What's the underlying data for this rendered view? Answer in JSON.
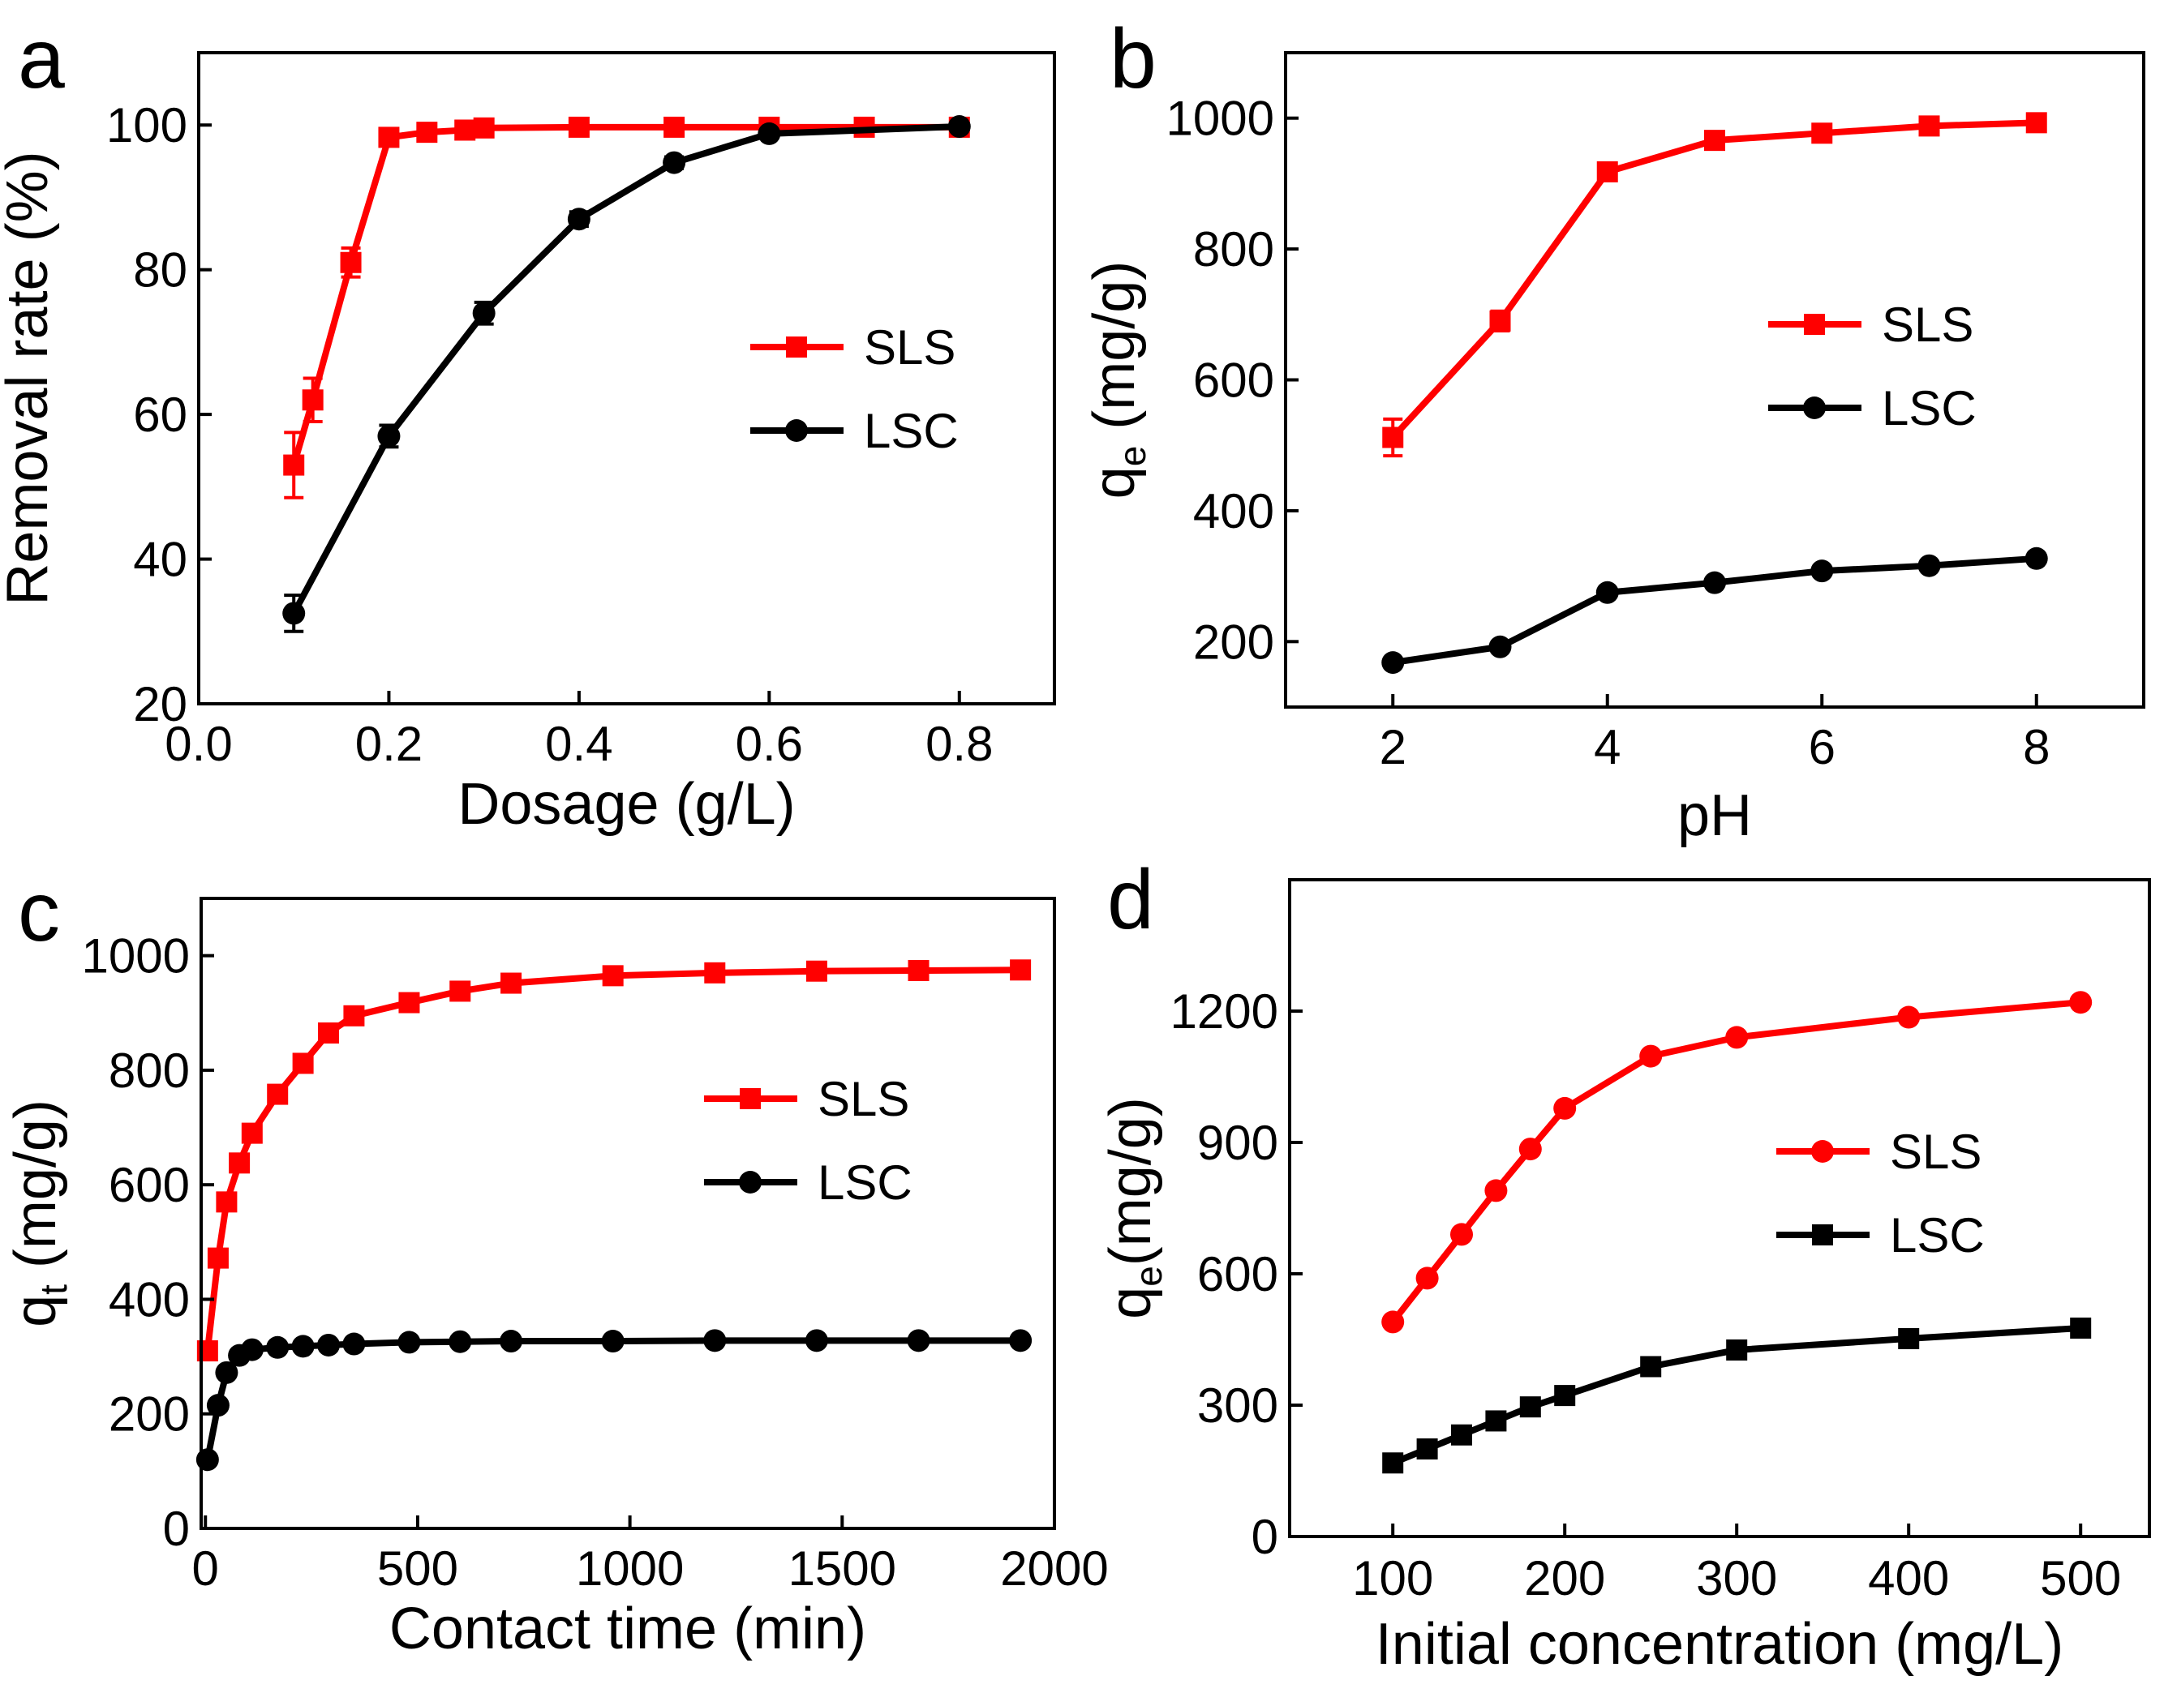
{
  "chart_data": [
    {
      "panel": "a",
      "type": "line",
      "xlabel": "Dosage (g/L)",
      "ylabel": "Removal rate (%)",
      "xlim": [
        0.0,
        0.9
      ],
      "ylim": [
        20,
        110
      ],
      "xticks": [
        0.0,
        0.2,
        0.4,
        0.6,
        0.8
      ],
      "xtick_labels": [
        "0.0",
        "0.2",
        "0.4",
        "0.6",
        "0.8"
      ],
      "yticks": [
        20,
        40,
        60,
        80,
        100
      ],
      "ytick_labels": [
        "20",
        "40",
        "60",
        "80",
        "100"
      ],
      "legend_position": "right",
      "series": [
        {
          "name": "SLS",
          "color": "#ff0000",
          "marker": "square",
          "x": [
            0.1,
            0.12,
            0.16,
            0.2,
            0.24,
            0.28,
            0.3,
            0.4,
            0.5,
            0.6,
            0.7,
            0.8
          ],
          "y": [
            53,
            62,
            81,
            98.3,
            99,
            99.3,
            99.6,
            99.7,
            99.7,
            99.7,
            99.7,
            99.7
          ],
          "err": [
            4.5,
            3,
            2,
            1,
            0.8,
            0.6,
            0.5,
            0.3,
            0.3,
            0.3,
            0.3,
            0.3
          ]
        },
        {
          "name": "LSC",
          "color": "#000000",
          "marker": "circle",
          "x": [
            0.1,
            0.2,
            0.3,
            0.4,
            0.5,
            0.6,
            0.8
          ],
          "y": [
            32.5,
            57,
            74,
            87,
            94.8,
            98.8,
            99.8
          ],
          "err": [
            2.5,
            1.5,
            1.5,
            1,
            0.8,
            0.6,
            0.5
          ]
        }
      ]
    },
    {
      "panel": "b",
      "type": "line",
      "xlabel": "pH",
      "ylabel": "q",
      "ylabel_subscript": "e",
      "ylabel_suffix": " (mg/g)",
      "xlim": [
        1.0,
        9.0
      ],
      "ylim": [
        100,
        1100
      ],
      "xticks": [
        2,
        4,
        6,
        8
      ],
      "xtick_labels": [
        "2",
        "4",
        "6",
        "8"
      ],
      "yticks": [
        200,
        400,
        600,
        800,
        1000
      ],
      "ytick_labels": [
        "200",
        "400",
        "600",
        "800",
        "1000"
      ],
      "legend_position": "right",
      "series": [
        {
          "name": "SLS",
          "color": "#ff0000",
          "marker": "square",
          "x": [
            2,
            3,
            4,
            5,
            6,
            7,
            8
          ],
          "y": [
            512,
            690,
            918,
            966,
            977,
            988,
            993
          ],
          "err": [
            28,
            15,
            10,
            8,
            6,
            5,
            5
          ]
        },
        {
          "name": "LSC",
          "color": "#000000",
          "marker": "circle",
          "x": [
            2,
            3,
            4,
            5,
            6,
            7,
            8
          ],
          "y": [
            168,
            192,
            275,
            290,
            308,
            316,
            327
          ],
          "err": [
            5,
            5,
            5,
            5,
            5,
            5,
            5
          ]
        }
      ]
    },
    {
      "panel": "c",
      "type": "line",
      "xlabel": "Contact time (min)",
      "ylabel": "q",
      "ylabel_subscript": "t",
      "ylabel_suffix": " (mg/g)",
      "xlim": [
        -10,
        2000
      ],
      "ylim": [
        0,
        1100
      ],
      "xticks": [
        0,
        500,
        1000,
        1500,
        2000
      ],
      "xtick_labels": [
        "0",
        "500",
        "1000",
        "1500",
        "2000"
      ],
      "yticks": [
        0,
        200,
        400,
        600,
        800,
        1000
      ],
      "ytick_labels": [
        "0",
        "200",
        "400",
        "600",
        "800",
        "1000"
      ],
      "legend_position": "right",
      "series": [
        {
          "name": "SLS",
          "color": "#ff0000",
          "marker": "square",
          "x": [
            5,
            30,
            50,
            80,
            110,
            170,
            230,
            290,
            350,
            480,
            600,
            720,
            960,
            1200,
            1440,
            1680,
            1920
          ],
          "y": [
            310,
            472,
            570,
            638,
            690,
            758,
            812,
            865,
            895,
            918,
            938,
            952,
            965,
            970,
            973,
            974,
            975
          ]
        },
        {
          "name": "LSC",
          "color": "#000000",
          "marker": "circle",
          "x": [
            5,
            30,
            50,
            80,
            110,
            170,
            230,
            290,
            350,
            480,
            600,
            720,
            960,
            1200,
            1440,
            1680,
            1920
          ],
          "y": [
            120,
            215,
            272,
            302,
            312,
            316,
            318,
            320,
            322,
            325,
            326,
            327,
            327,
            328,
            328,
            328,
            328
          ]
        }
      ]
    },
    {
      "panel": "d",
      "type": "line",
      "xlabel": "Initial concentration (mg/L)",
      "ylabel": "q",
      "ylabel_subscript": "e",
      "ylabel_suffix": "(mg/g)",
      "xlim": [
        40,
        540
      ],
      "ylim": [
        0,
        1500
      ],
      "xticks": [
        100,
        200,
        300,
        400,
        500
      ],
      "xtick_labels": [
        "100",
        "200",
        "300",
        "400",
        "500"
      ],
      "yticks": [
        0,
        300,
        600,
        900,
        1200
      ],
      "ytick_labels": [
        "0",
        "300",
        "600",
        "900",
        "1200"
      ],
      "legend_position": "right",
      "series": [
        {
          "name": "SLS",
          "color": "#ff0000",
          "marker": "circle",
          "x": [
            100,
            120,
            140,
            160,
            180,
            200,
            250,
            300,
            400,
            500
          ],
          "y": [
            490,
            590,
            690,
            790,
            885,
            978,
            1097,
            1140,
            1186,
            1220
          ]
        },
        {
          "name": "LSC",
          "color": "#000000",
          "marker": "square",
          "x": [
            100,
            120,
            140,
            160,
            180,
            200,
            250,
            300,
            400,
            500
          ],
          "y": [
            168,
            200,
            232,
            264,
            296,
            322,
            388,
            426,
            452,
            476
          ]
        }
      ]
    }
  ],
  "panel_letters": [
    "a",
    "b",
    "c",
    "d"
  ]
}
